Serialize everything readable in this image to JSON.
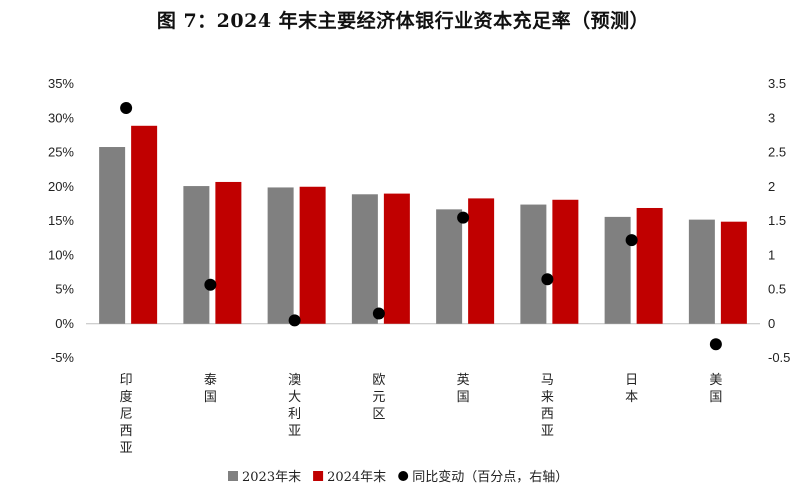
{
  "chart_data": {
    "type": "bar",
    "title": "图 7：2024 年末主要经济体银行业资本充足率（预测）",
    "categories": [
      "印度尼西亚",
      "泰国",
      "澳大利亚",
      "欧元区",
      "英国",
      "马来西亚",
      "日本",
      "美国"
    ],
    "series": [
      {
        "name": "2023年末",
        "kind": "bar",
        "axis": "left",
        "color": "#808080",
        "values": [
          25.8,
          20.1,
          19.9,
          18.9,
          16.7,
          17.4,
          15.6,
          15.2
        ]
      },
      {
        "name": "2024年末",
        "kind": "bar",
        "axis": "left",
        "color": "#c00000",
        "values": [
          28.9,
          20.7,
          20.0,
          19.0,
          18.3,
          18.1,
          16.9,
          14.9
        ]
      },
      {
        "name": "同比变动（百分点，右轴）",
        "kind": "point",
        "axis": "right",
        "color": "#000000",
        "values": [
          3.15,
          0.57,
          0.05,
          0.15,
          1.55,
          0.65,
          1.22,
          -0.3
        ]
      }
    ],
    "y_left": {
      "min": -5,
      "max": 35,
      "step": 5,
      "ticks": [
        "-5%",
        "0%",
        "5%",
        "10%",
        "15%",
        "20%",
        "25%",
        "30%",
        "35%"
      ]
    },
    "y_right": {
      "min": -0.5,
      "max": 3.5,
      "step": 0.5,
      "ticks": [
        "-0.5",
        "0",
        "0.5",
        "1",
        "1.5",
        "2",
        "2.5",
        "3",
        "3.5"
      ]
    },
    "grid": false,
    "legend_position": "bottom"
  }
}
